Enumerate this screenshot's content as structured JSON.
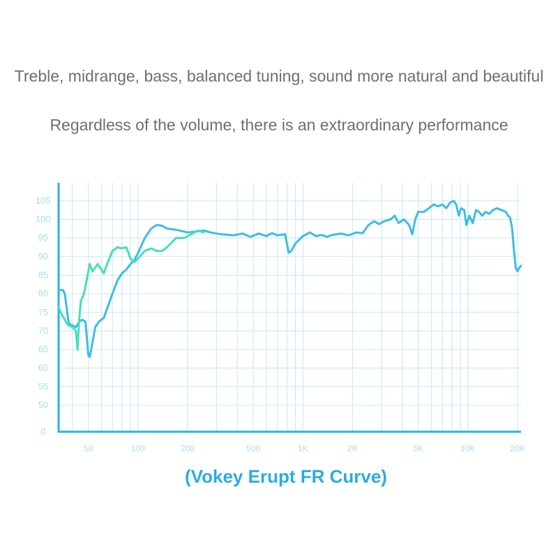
{
  "headline": {
    "line1": "Treble, midrange, bass, balanced tuning, sound more natural and beautiful",
    "line2": "Regardless of the volume, there is an extraordinary performance"
  },
  "colors": {
    "axis": "#29b3e6",
    "grid": "#c3e8f4",
    "tick": "#a9dcef",
    "series_blue": "#3cbce8",
    "series_green": "#45e0b8",
    "caption": "#27aee0"
  },
  "chart_data": {
    "type": "line",
    "title": "(Vokey Erupt FR Curve)",
    "xlabel": "",
    "ylabel": "",
    "x_scale": "log",
    "xlim": [
      33,
      21000
    ],
    "y_ticks": [
      "0",
      "50",
      "55",
      "60",
      "65",
      "70",
      "75",
      "80",
      "85",
      "90",
      "95",
      "100",
      "105"
    ],
    "x_ticks": [
      {
        "value": 50,
        "label": "50"
      },
      {
        "value": 100,
        "label": "100"
      },
      {
        "value": 200,
        "label": "200"
      },
      {
        "value": 500,
        "label": "500"
      },
      {
        "value": 1000,
        "label": "1K"
      },
      {
        "value": 2000,
        "label": "2K"
      },
      {
        "value": 5000,
        "label": "5K"
      },
      {
        "value": 10000,
        "label": "10K"
      },
      {
        "value": 20000,
        "label": "20K"
      }
    ],
    "grid": true,
    "series": [
      {
        "color": "#3cbce8",
        "points": [
          [
            33,
            81
          ],
          [
            35,
            81
          ],
          [
            36,
            80
          ],
          [
            37,
            76
          ],
          [
            38,
            72
          ],
          [
            40,
            71.5
          ],
          [
            42,
            71
          ],
          [
            44,
            72.5
          ],
          [
            46,
            73
          ],
          [
            48,
            72.5
          ],
          [
            49,
            68
          ],
          [
            50,
            63.5
          ],
          [
            51,
            63
          ],
          [
            53,
            67
          ],
          [
            55,
            71
          ],
          [
            58,
            72.5
          ],
          [
            60,
            73
          ],
          [
            62,
            73.5
          ],
          [
            65,
            76
          ],
          [
            70,
            80
          ],
          [
            75,
            83.5
          ],
          [
            80,
            85.5
          ],
          [
            85,
            86.5
          ],
          [
            90,
            88
          ],
          [
            95,
            89
          ],
          [
            100,
            91
          ],
          [
            110,
            95
          ],
          [
            120,
            97.5
          ],
          [
            130,
            98.5
          ],
          [
            140,
            98.3
          ],
          [
            150,
            97.5
          ],
          [
            170,
            97.2
          ],
          [
            200,
            96.5
          ],
          [
            230,
            96.8
          ],
          [
            250,
            97
          ],
          [
            280,
            96.4
          ],
          [
            320,
            96
          ],
          [
            380,
            95.7
          ],
          [
            430,
            96.2
          ],
          [
            480,
            95.3
          ],
          [
            540,
            96.2
          ],
          [
            600,
            95.5
          ],
          [
            650,
            96.3
          ],
          [
            700,
            95.7
          ],
          [
            780,
            96
          ],
          [
            820,
            91
          ],
          [
            850,
            91.5
          ],
          [
            900,
            93.5
          ],
          [
            1000,
            95.5
          ],
          [
            1050,
            96
          ],
          [
            1100,
            96.5
          ],
          [
            1200,
            95.5
          ],
          [
            1300,
            95.8
          ],
          [
            1400,
            95.3
          ],
          [
            1500,
            95.8
          ],
          [
            1700,
            96.2
          ],
          [
            1900,
            95.7
          ],
          [
            2100,
            96.5
          ],
          [
            2300,
            96.3
          ],
          [
            2500,
            98.5
          ],
          [
            2700,
            99.5
          ],
          [
            2900,
            98.7
          ],
          [
            3100,
            99.5
          ],
          [
            3400,
            100
          ],
          [
            3600,
            101
          ],
          [
            3800,
            99
          ],
          [
            4100,
            100
          ],
          [
            4400,
            98.5
          ],
          [
            4600,
            96
          ],
          [
            4800,
            100
          ],
          [
            5000,
            102
          ],
          [
            5400,
            102
          ],
          [
            5800,
            103
          ],
          [
            6200,
            104
          ],
          [
            6600,
            103.5
          ],
          [
            7000,
            104
          ],
          [
            7400,
            103
          ],
          [
            7800,
            104.5
          ],
          [
            8200,
            105
          ],
          [
            8500,
            104
          ],
          [
            8800,
            101
          ],
          [
            9100,
            103
          ],
          [
            9500,
            102.5
          ],
          [
            9800,
            98.5
          ],
          [
            10200,
            101
          ],
          [
            10700,
            99
          ],
          [
            11200,
            102.5
          ],
          [
            11700,
            102
          ],
          [
            12200,
            101
          ],
          [
            12800,
            102
          ],
          [
            13500,
            101.5
          ],
          [
            14200,
            102.5
          ],
          [
            15000,
            103
          ],
          [
            16000,
            102.5
          ],
          [
            17000,
            102
          ],
          [
            17500,
            101
          ],
          [
            18000,
            100.5
          ],
          [
            18500,
            98
          ],
          [
            19000,
            92
          ],
          [
            19500,
            87
          ],
          [
            20000,
            86
          ],
          [
            20500,
            87
          ],
          [
            21000,
            87.5
          ]
        ]
      },
      {
        "color": "#45e0b8",
        "points": [
          [
            33,
            76.5
          ],
          [
            34,
            75
          ],
          [
            35,
            74
          ],
          [
            36,
            73
          ],
          [
            37,
            72
          ],
          [
            38,
            71.5
          ],
          [
            40,
            71
          ],
          [
            42,
            70
          ],
          [
            43,
            65
          ],
          [
            44,
            73
          ],
          [
            45,
            78
          ],
          [
            47,
            80
          ],
          [
            49,
            84
          ],
          [
            51,
            88
          ],
          [
            53,
            86
          ],
          [
            55,
            87
          ],
          [
            57,
            88
          ],
          [
            60,
            86.5
          ],
          [
            62,
            85.5
          ],
          [
            65,
            88
          ],
          [
            70,
            91.5
          ],
          [
            75,
            92.5
          ],
          [
            80,
            92.2
          ],
          [
            85,
            92.5
          ],
          [
            90,
            89.5
          ],
          [
            95,
            88.5
          ],
          [
            100,
            89.5
          ],
          [
            110,
            91.5
          ],
          [
            120,
            92.2
          ],
          [
            130,
            91.5
          ],
          [
            140,
            91.5
          ],
          [
            150,
            92.5
          ],
          [
            170,
            95
          ],
          [
            190,
            95
          ],
          [
            210,
            96
          ],
          [
            230,
            97
          ],
          [
            250,
            96.5
          ]
        ]
      }
    ]
  }
}
